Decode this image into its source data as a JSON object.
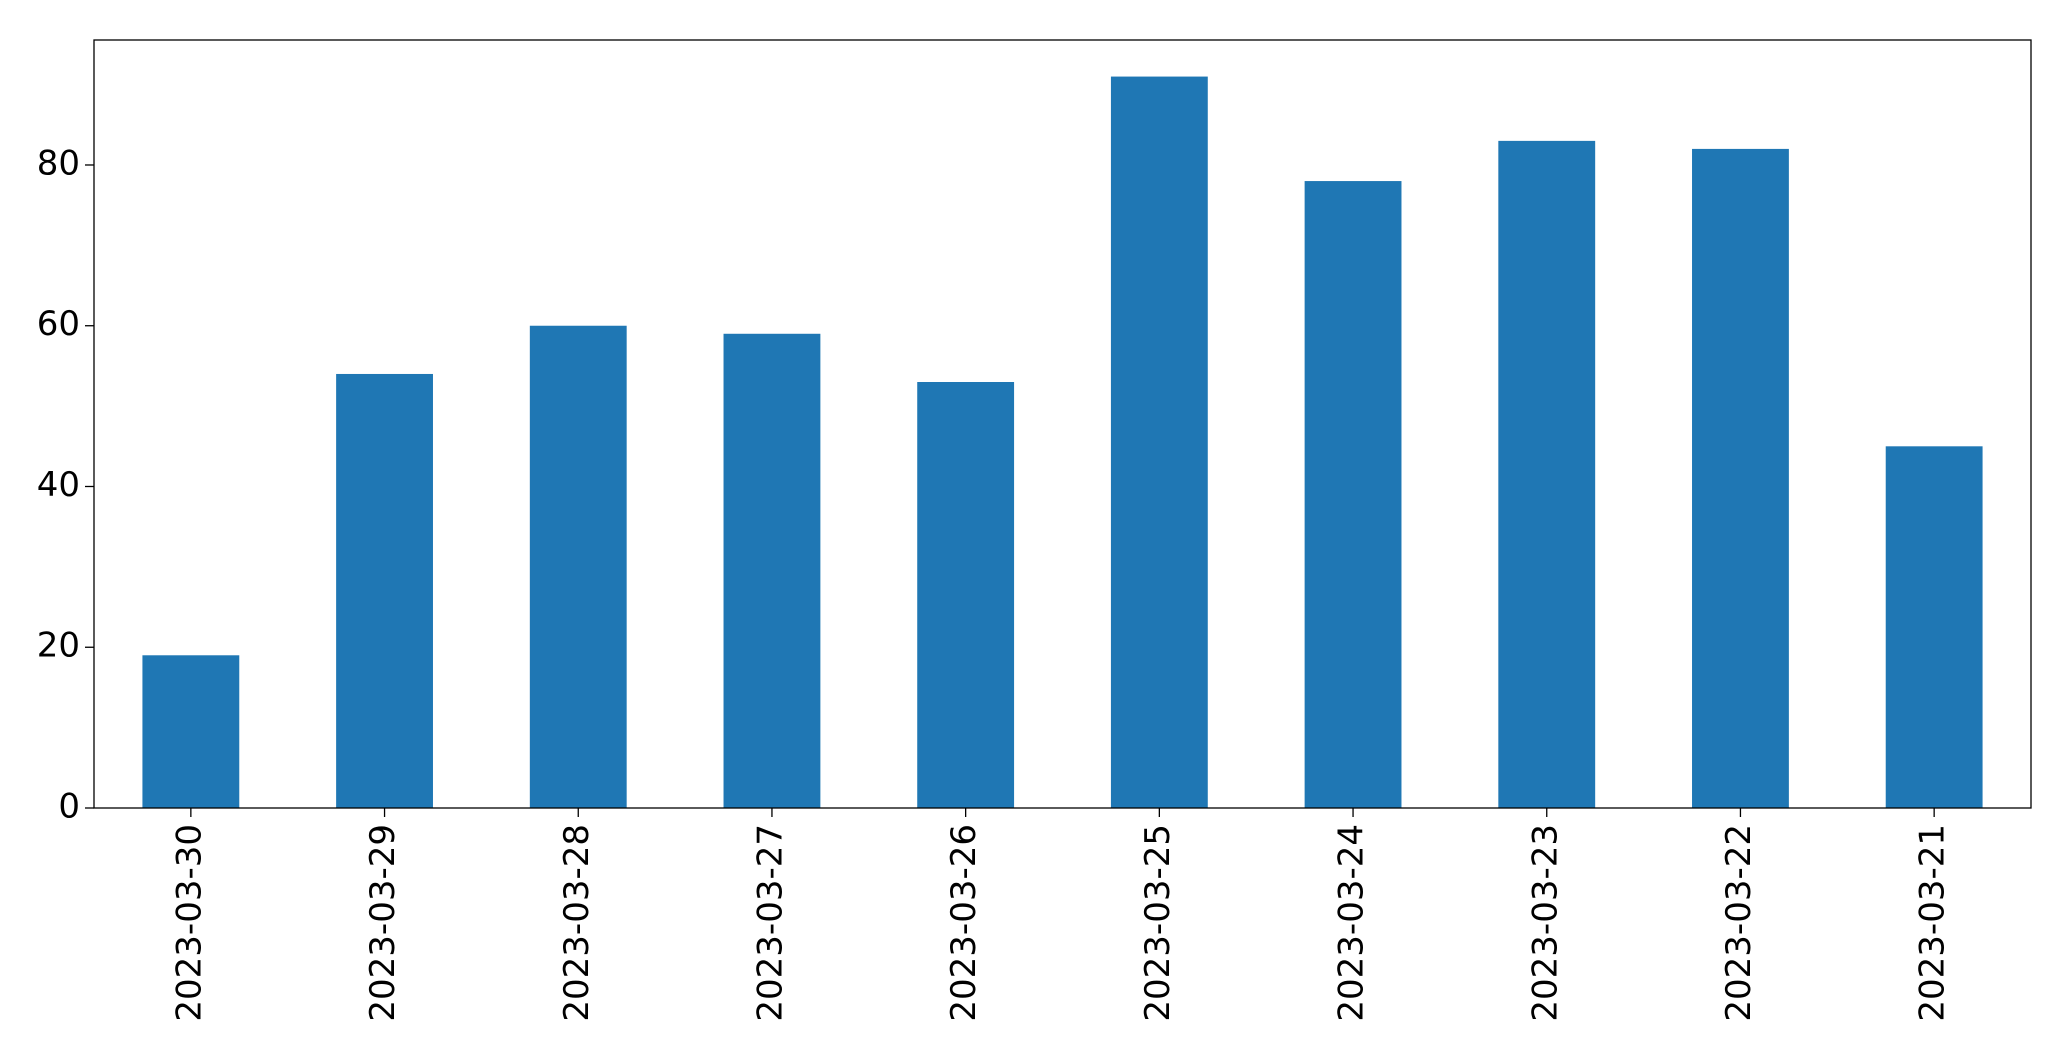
{
  "chart_data": {
    "type": "bar",
    "categories": [
      "2023-03-30",
      "2023-03-29",
      "2023-03-28",
      "2023-03-27",
      "2023-03-26",
      "2023-03-25",
      "2023-03-24",
      "2023-03-23",
      "2023-03-22",
      "2023-03-21"
    ],
    "values": [
      19,
      54,
      60,
      59,
      53,
      91,
      78,
      83,
      82,
      45
    ],
    "color": "#1f77b4",
    "ylim": [
      0,
      95.55
    ],
    "yticks": [
      0,
      20,
      40,
      60,
      80
    ],
    "grid": false
  }
}
